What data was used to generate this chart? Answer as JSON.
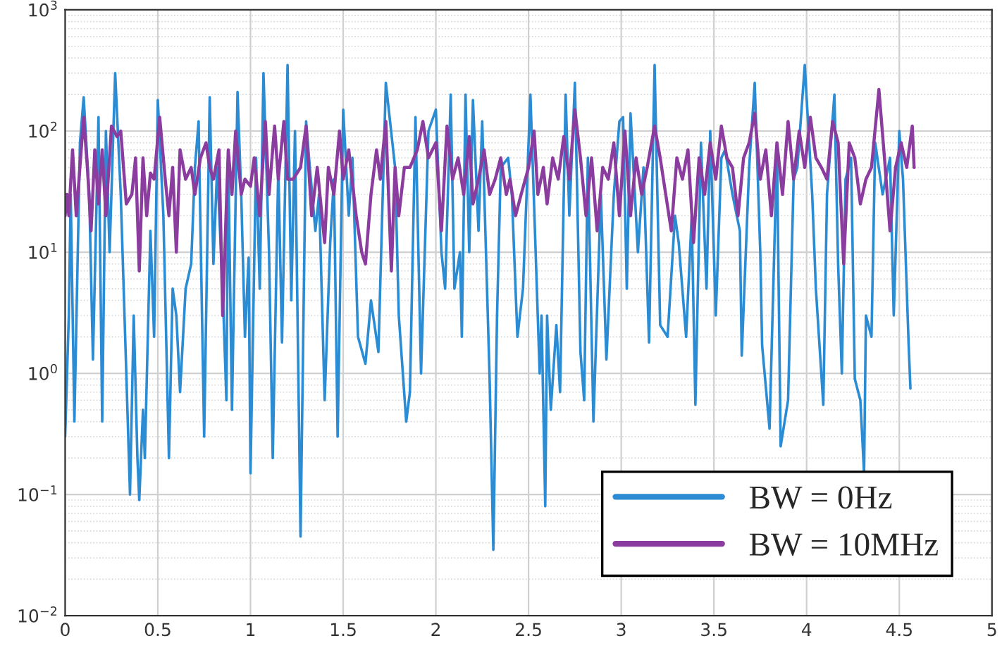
{
  "chart_data": {
    "type": "line",
    "log": "y",
    "grid": true,
    "legend": "bottom right",
    "xlim": [
      0,
      5
    ],
    "xticks": [
      0,
      0.5,
      1,
      1.5,
      2,
      2.5,
      3,
      3.5,
      4,
      4.5,
      5
    ],
    "ylim": [
      0.01,
      1000
    ],
    "yticks": [
      {
        "value": 0.01,
        "label": "10$^{−2}$"
      },
      {
        "value": 0.1,
        "label": "10$^{−1}$"
      },
      {
        "value": 1,
        "label": "10$^{0}$"
      },
      {
        "value": 10,
        "label": "10$^{1}$"
      },
      {
        "value": 100,
        "label": "10$^{2}$"
      },
      {
        "value": 1000,
        "label": "10$^{3}$"
      }
    ],
    "series": [
      {
        "name": "BW = 0Hz",
        "color": "#2b8cd4",
        "x": [
          0,
          0.02,
          0.03,
          0.05,
          0.08,
          0.1,
          0.13,
          0.15,
          0.18,
          0.2,
          0.22,
          0.24,
          0.27,
          0.3,
          0.33,
          0.35,
          0.37,
          0.39,
          0.4,
          0.42,
          0.43,
          0.46,
          0.48,
          0.5,
          0.53,
          0.56,
          0.58,
          0.6,
          0.62,
          0.65,
          0.68,
          0.7,
          0.72,
          0.75,
          0.78,
          0.8,
          0.82,
          0.85,
          0.87,
          0.88,
          0.9,
          0.93,
          0.95,
          0.97,
          0.99,
          1.0,
          1.03,
          1.05,
          1.07,
          1.1,
          1.12,
          1.15,
          1.17,
          1.2,
          1.22,
          1.24,
          1.27,
          1.3,
          1.32,
          1.35,
          1.37,
          1.4,
          1.43,
          1.45,
          1.47,
          1.5,
          1.53,
          1.55,
          1.58,
          1.62,
          1.65,
          1.69,
          1.73,
          1.78,
          1.8,
          1.84,
          1.86,
          1.89,
          1.92,
          1.96,
          2.0,
          2.03,
          2.05,
          2.08,
          2.1,
          2.13,
          2.14,
          2.16,
          2.18,
          2.2,
          2.23,
          2.25,
          2.29,
          2.31,
          2.33,
          2.35,
          2.39,
          2.41,
          2.44,
          2.47,
          2.51,
          2.56,
          2.57,
          2.59,
          2.6,
          2.62,
          2.65,
          2.67,
          2.7,
          2.72,
          2.75,
          2.78,
          2.8,
          2.82,
          2.85,
          2.89,
          2.92,
          2.96,
          2.99,
          3.01,
          3.03,
          3.05,
          3.09,
          3.12,
          3.15,
          3.18,
          3.21,
          3.25,
          3.29,
          3.31,
          3.35,
          3.38,
          3.4,
          3.43,
          3.46,
          3.48,
          3.51,
          3.54,
          3.56,
          3.6,
          3.64,
          3.65,
          3.69,
          3.72,
          3.75,
          3.76,
          3.8,
          3.84,
          3.86,
          3.9,
          3.93,
          3.95,
          3.99,
          4.03,
          4.05,
          4.09,
          4.11,
          4.15,
          4.17,
          4.19,
          4.21,
          4.24,
          4.26,
          4.29,
          4.31,
          4.32,
          4.35,
          4.37,
          4.41,
          4.45,
          4.47,
          4.5,
          4.52,
          4.55,
          4.56
        ],
        "values": [
          0.3,
          3,
          30,
          0.4,
          80,
          190,
          30,
          1.3,
          130,
          0.4,
          100,
          10,
          300,
          30,
          1,
          0.1,
          3,
          0.2,
          0.09,
          0.5,
          0.2,
          15,
          2,
          180,
          20,
          0.2,
          5,
          3,
          0.7,
          5,
          8,
          50,
          120,
          0.3,
          190,
          8,
          50,
          5,
          0.6,
          60,
          0.5,
          210,
          30,
          2,
          9,
          0.15,
          60,
          5,
          300,
          10,
          0.2,
          50,
          1.8,
          350,
          4,
          100,
          0.045,
          120,
          50,
          15,
          30,
          0.6,
          12,
          40,
          0.3,
          150,
          20,
          60,
          2,
          1.2,
          4,
          1.5,
          250,
          50,
          3,
          0.4,
          0.7,
          130,
          1,
          100,
          150,
          10,
          5,
          200,
          5,
          10,
          2,
          200,
          10,
          180,
          15,
          120,
          0.9,
          0.035,
          3,
          50,
          60,
          30,
          2,
          5,
          200,
          1,
          3,
          0.08,
          3,
          0.5,
          2.5,
          0.7,
          200,
          20,
          250,
          1.5,
          0.6,
          60,
          0.4,
          30,
          1.3,
          30,
          120,
          130,
          5,
          140,
          10,
          50,
          1.8,
          350,
          2.5,
          2,
          20,
          12,
          2,
          20,
          0.55,
          80,
          5,
          100,
          3,
          60,
          70,
          30,
          15,
          1.4,
          50,
          250,
          10,
          1.7,
          0.35,
          70,
          0.25,
          0.6,
          40,
          50,
          350,
          30,
          5,
          0.55,
          30,
          200,
          8,
          1,
          40,
          60,
          0.9,
          0.6,
          0.15,
          3,
          2,
          80,
          30,
          60,
          3,
          100,
          40,
          1.8,
          0.75
        ]
      },
      {
        "name": "BW = 10MHz",
        "color": "#8b3d9f",
        "x": [
          0,
          0.01,
          0.02,
          0.04,
          0.06,
          0.1,
          0.12,
          0.14,
          0.16,
          0.18,
          0.2,
          0.22,
          0.25,
          0.28,
          0.3,
          0.33,
          0.36,
          0.38,
          0.4,
          0.42,
          0.44,
          0.46,
          0.48,
          0.51,
          0.54,
          0.56,
          0.58,
          0.6,
          0.62,
          0.65,
          0.68,
          0.7,
          0.73,
          0.76,
          0.78,
          0.8,
          0.83,
          0.85,
          0.88,
          0.9,
          0.92,
          0.95,
          0.97,
          1.0,
          1.02,
          1.05,
          1.08,
          1.1,
          1.13,
          1.15,
          1.18,
          1.2,
          1.23,
          1.27,
          1.3,
          1.33,
          1.36,
          1.4,
          1.42,
          1.45,
          1.48,
          1.5,
          1.53,
          1.57,
          1.6,
          1.62,
          1.65,
          1.68,
          1.7,
          1.73,
          1.76,
          1.78,
          1.8,
          1.83,
          1.86,
          1.9,
          1.93,
          1.96,
          2.0,
          2.03,
          2.06,
          2.09,
          2.12,
          2.15,
          2.18,
          2.2,
          2.23,
          2.26,
          2.29,
          2.32,
          2.35,
          2.38,
          2.4,
          2.43,
          2.46,
          2.5,
          2.53,
          2.55,
          2.58,
          2.6,
          2.63,
          2.66,
          2.69,
          2.72,
          2.75,
          2.78,
          2.81,
          2.84,
          2.87,
          2.9,
          2.93,
          2.96,
          2.99,
          3.02,
          3.05,
          3.08,
          3.11,
          3.14,
          3.18,
          3.21,
          3.24,
          3.27,
          3.3,
          3.33,
          3.36,
          3.39,
          3.42,
          3.45,
          3.48,
          3.51,
          3.54,
          3.57,
          3.6,
          3.63,
          3.66,
          3.69,
          3.72,
          3.75,
          3.78,
          3.81,
          3.84,
          3.87,
          3.9,
          3.93,
          3.96,
          3.99,
          4.02,
          4.05,
          4.08,
          4.11,
          4.14,
          4.17,
          4.2,
          4.23,
          4.26,
          4.29,
          4.32,
          4.35,
          4.39,
          4.42,
          4.45,
          4.48,
          4.51,
          4.54,
          4.57,
          4.58
        ],
        "values": [
          20,
          30,
          20,
          70,
          20,
          130,
          50,
          15,
          70,
          25,
          70,
          20,
          110,
          90,
          100,
          25,
          30,
          60,
          7,
          60,
          20,
          45,
          40,
          130,
          40,
          20,
          50,
          10,
          70,
          40,
          50,
          30,
          60,
          80,
          50,
          40,
          70,
          3,
          70,
          30,
          100,
          30,
          40,
          35,
          60,
          20,
          120,
          30,
          110,
          40,
          120,
          40,
          40,
          50,
          110,
          20,
          50,
          12,
          50,
          30,
          100,
          40,
          70,
          20,
          10,
          8,
          30,
          70,
          40,
          120,
          7,
          50,
          20,
          50,
          50,
          70,
          120,
          60,
          80,
          15,
          110,
          40,
          60,
          30,
          90,
          25,
          40,
          70,
          30,
          40,
          60,
          30,
          40,
          20,
          30,
          50,
          100,
          30,
          50,
          25,
          60,
          40,
          90,
          40,
          150,
          60,
          20,
          60,
          15,
          50,
          40,
          80,
          20,
          100,
          20,
          60,
          30,
          50,
          110,
          60,
          30,
          15,
          60,
          40,
          70,
          12,
          60,
          30,
          80,
          40,
          110,
          60,
          50,
          20,
          60,
          80,
          140,
          40,
          70,
          20,
          80,
          30,
          120,
          40,
          100,
          50,
          130,
          60,
          50,
          40,
          120,
          80,
          8,
          80,
          60,
          25,
          40,
          50,
          220,
          60,
          15,
          50,
          80,
          50,
          110,
          50
        ]
      }
    ]
  }
}
